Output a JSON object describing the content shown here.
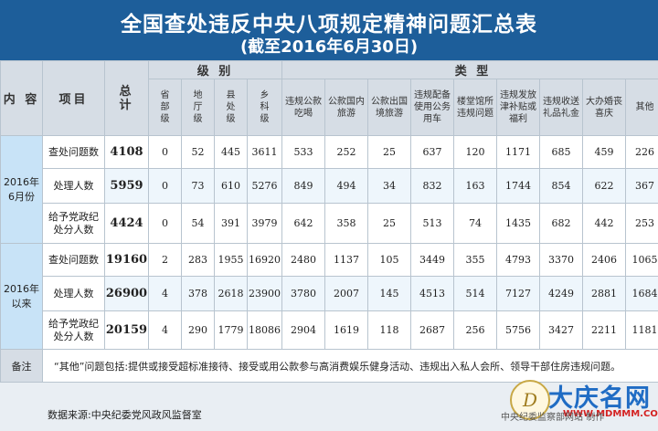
{
  "title": "全国查处违反中央八项规定精神问题汇总表",
  "subtitle": "(截至2016年6月30日)",
  "header": {
    "content": "内 容",
    "item": "项目",
    "total": "总\n计",
    "level_group": "级 别",
    "type_group": "类 型",
    "levels": [
      "省\n部\n级",
      "地\n厅\n级",
      "县\n处\n级",
      "乡\n科\n级"
    ],
    "types": [
      "违规公款\n吃喝",
      "公款国内\n旅游",
      "公款出国\n境旅游",
      "违规配备\n使用公务\n用车",
      "楼堂馆所\n违规问题",
      "违规发放\n津补贴或\n福利",
      "违规收送\n礼品礼金",
      "大办婚丧\n喜庆",
      "其他"
    ]
  },
  "sections": [
    {
      "period": "2016年\n6月份",
      "rows": [
        {
          "label": "查处问题数",
          "total": "4108",
          "levels": [
            "0",
            "52",
            "445",
            "3611"
          ],
          "types": [
            "533",
            "252",
            "25",
            "637",
            "120",
            "1171",
            "685",
            "459",
            "226"
          ]
        },
        {
          "label": "处理人数",
          "total": "5959",
          "levels": [
            "0",
            "73",
            "610",
            "5276"
          ],
          "types": [
            "849",
            "494",
            "34",
            "832",
            "163",
            "1744",
            "854",
            "622",
            "367"
          ]
        },
        {
          "label": "给予党政纪\n处分人数",
          "total": "4424",
          "levels": [
            "0",
            "54",
            "391",
            "3979"
          ],
          "types": [
            "642",
            "358",
            "25",
            "513",
            "74",
            "1435",
            "682",
            "442",
            "253"
          ]
        }
      ]
    },
    {
      "period": "2016年\n以来",
      "rows": [
        {
          "label": "查处问题数",
          "total": "19160",
          "levels": [
            "2",
            "283",
            "1955",
            "16920"
          ],
          "types": [
            "2480",
            "1137",
            "105",
            "3449",
            "355",
            "4793",
            "3370",
            "2406",
            "1065"
          ]
        },
        {
          "label": "处理人数",
          "total": "26900",
          "levels": [
            "4",
            "378",
            "2618",
            "23900"
          ],
          "types": [
            "3780",
            "2007",
            "145",
            "4513",
            "514",
            "7127",
            "4249",
            "2881",
            "1684"
          ]
        },
        {
          "label": "给予党政纪\n处分人数",
          "total": "20159",
          "levels": [
            "4",
            "290",
            "1779",
            "18086"
          ],
          "types": [
            "2904",
            "1619",
            "118",
            "2687",
            "256",
            "5756",
            "3427",
            "2211",
            "1181"
          ]
        }
      ]
    }
  ],
  "note_label": "备注",
  "note_text": "“其他”问题包括:提供或接受超标准接待、接受或用公款参与高消费娱乐健身活动、违规出入私人会所、领导干部住房违规问题。",
  "source": "数据来源:中央纪委党风政风监督室",
  "credit": "中央纪委监察部网站  制作",
  "watermark": {
    "text": "大庆名网",
    "url": "WWW.MDMMM.COM"
  }
}
